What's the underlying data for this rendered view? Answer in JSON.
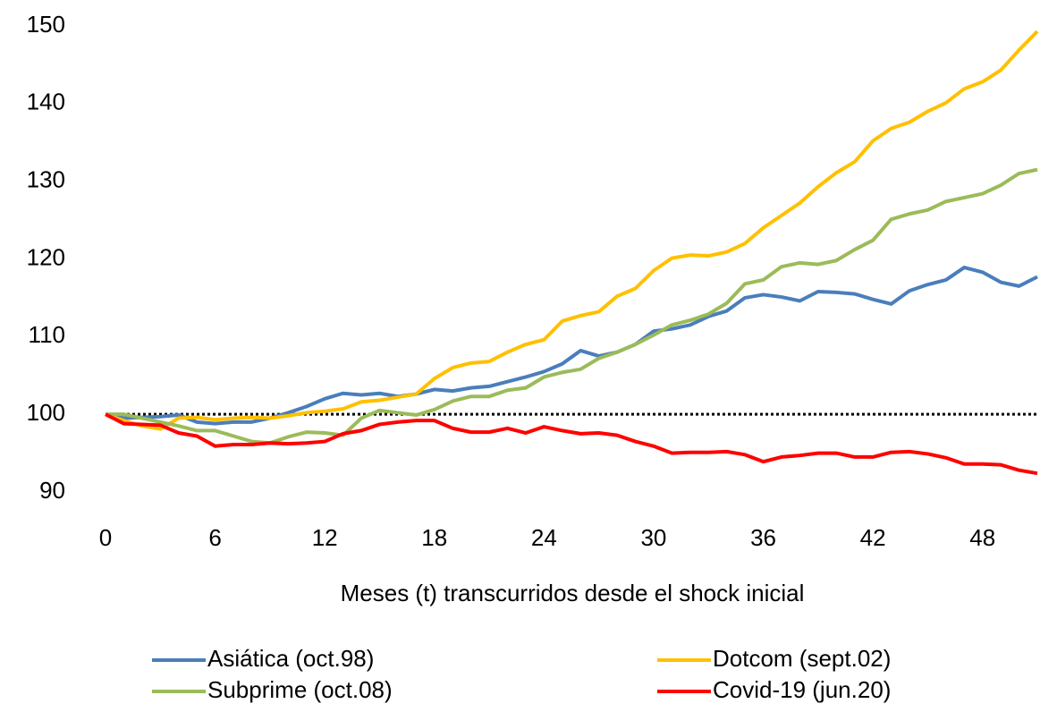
{
  "chart_data": {
    "type": "line",
    "x_label": "Meses (t) transcurridos desde el shock inicial",
    "x": [
      0,
      1,
      2,
      3,
      4,
      5,
      6,
      7,
      8,
      9,
      10,
      11,
      12,
      13,
      14,
      15,
      16,
      17,
      18,
      19,
      20,
      21,
      22,
      23,
      24,
      25,
      26,
      27,
      28,
      29,
      30,
      31,
      32,
      33,
      34,
      35,
      36,
      37,
      38,
      39,
      40,
      41,
      42,
      43,
      44,
      45,
      46,
      47,
      48,
      49,
      50,
      51
    ],
    "xlim": [
      0,
      51
    ],
    "xticks": [
      0,
      6,
      12,
      18,
      24,
      30,
      36,
      42,
      48
    ],
    "ylim": [
      90,
      150
    ],
    "yticks": [
      90,
      100,
      110,
      120,
      130,
      140,
      150
    ],
    "reference_line": 100,
    "grid": false,
    "legend_position": "bottom",
    "series": [
      {
        "name": "Asiática (oct.98)",
        "color": "#4a7ebb",
        "values": [
          100,
          99.5,
          99.6,
          99.7,
          99.9,
          99,
          98.8,
          99,
          99,
          99.5,
          100.2,
          101,
          102,
          102.7,
          102.5,
          102.7,
          102.3,
          102.6,
          103.2,
          103,
          103.4,
          103.6,
          104.2,
          104.8,
          105.5,
          106.5,
          108.2,
          107.5,
          108,
          109,
          110.7,
          111,
          111.5,
          112.6,
          113.3,
          115,
          115.4,
          115.1,
          114.6,
          115.8,
          115.7,
          115.5,
          114.8,
          114.2,
          115.9,
          116.7,
          117.3,
          118.9,
          118.3,
          117,
          116.5,
          117.7
        ]
      },
      {
        "name": "Dotcom (sept.02)",
        "color": "#ffc000",
        "values": [
          100,
          99.2,
          98.5,
          98.1,
          99.5,
          99.6,
          99.3,
          99.5,
          99.6,
          99.5,
          99.8,
          100.2,
          100.4,
          100.7,
          101.6,
          101.8,
          102.2,
          102.6,
          104.6,
          106,
          106.6,
          106.8,
          108,
          109,
          109.6,
          112,
          112.7,
          113.2,
          115.2,
          116.2,
          118.5,
          120.1,
          120.5,
          120.4,
          120.9,
          122,
          124,
          125.6,
          127.2,
          129.3,
          131.1,
          132.5,
          135.2,
          136.8,
          137.6,
          139,
          140.1,
          141.9,
          142.8,
          144.3,
          146.9,
          149.3
        ]
      },
      {
        "name": "Subprime (oct.08)",
        "color": "#9bbb59",
        "values": [
          100,
          100,
          99.5,
          99,
          98.5,
          97.9,
          97.9,
          97.2,
          96.5,
          96.3,
          97.1,
          97.7,
          97.6,
          97.3,
          99.5,
          100.5,
          100.2,
          99.9,
          100.6,
          101.7,
          102.3,
          102.3,
          103.1,
          103.4,
          104.8,
          105.4,
          105.8,
          107.2,
          108,
          109,
          110.2,
          111.5,
          112.1,
          112.9,
          114.3,
          116.8,
          117.3,
          119,
          119.5,
          119.3,
          119.8,
          121.2,
          122.4,
          125.1,
          125.8,
          126.3,
          127.4,
          127.9,
          128.4,
          129.5,
          131,
          131.5
        ]
      },
      {
        "name": "Covid-19 (jun.20)",
        "color": "#ff0000",
        "values": [
          100,
          98.8,
          98.7,
          98.6,
          97.6,
          97.2,
          95.9,
          96.1,
          96.1,
          96.3,
          96.2,
          96.3,
          96.5,
          97.5,
          97.9,
          98.7,
          99,
          99.2,
          99.2,
          98.2,
          97.7,
          97.7,
          98.2,
          97.6,
          98.4,
          97.9,
          97.5,
          97.6,
          97.3,
          96.5,
          95.9,
          95,
          95.1,
          95.1,
          95.2,
          94.8,
          93.9,
          94.5,
          94.7,
          95,
          95,
          94.5,
          94.5,
          95.1,
          95.2,
          94.9,
          94.4,
          93.6,
          93.6,
          93.5,
          92.8,
          92.4
        ]
      }
    ]
  }
}
